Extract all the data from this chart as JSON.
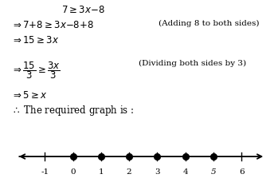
{
  "line1": "7 ≥ 3x–8",
  "line2_math": "⇒ 7+8 ≥ 3x–8+8",
  "line2_comment": "(Adding 8 to both sides)",
  "line3": "⇒ 15 ≥ 3x",
  "line4_comment": "(Dividing both sides by 3)",
  "line5": "⇒ 5 ≥ x",
  "line6": "∴ The required graph is :",
  "tick_positions": [
    -1,
    0,
    1,
    2,
    3,
    4,
    5,
    6
  ],
  "filled_dots": [
    0,
    1,
    2,
    3,
    4,
    5
  ],
  "dot_color": "#000000",
  "line_color": "#000000",
  "bg_color": "#ffffff",
  "text_color": "#000000",
  "font_size": 8.5,
  "small_font": 7.5
}
